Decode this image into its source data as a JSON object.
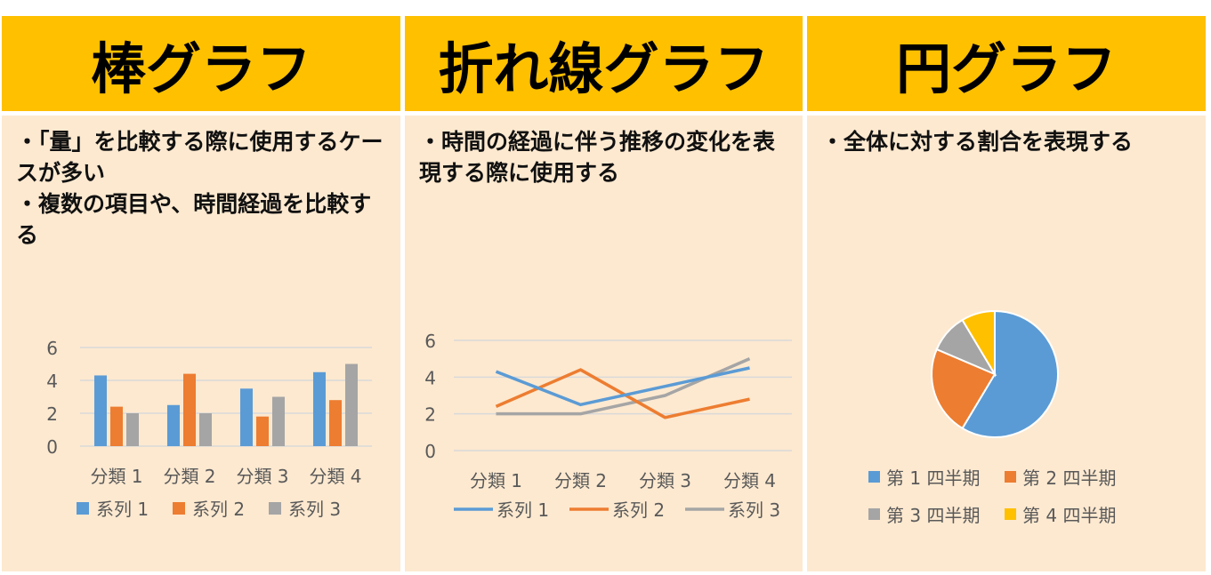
{
  "panels": [
    {
      "title": "棒グラフ",
      "bullets": [
        "・「量」を比較する際に使用するケースが多い",
        "・複数の項目や、時間経過を比較する"
      ]
    },
    {
      "title": "折れ線グラフ",
      "bullets": [
        "・時間の経過に伴う推移の変化を表現する際に使用する"
      ]
    },
    {
      "title": "円グラフ",
      "bullets": [
        "・全体に対する割合を表現する"
      ]
    }
  ],
  "colors": {
    "header": "#FFC000",
    "panel": "#FDE9D0",
    "s1": "#5B9BD5",
    "s2": "#ED7D31",
    "s3": "#A5A5A5",
    "s4": "#FFC000"
  },
  "chart_data": [
    {
      "type": "bar",
      "categories": [
        "分類 1",
        "分類 2",
        "分類 3",
        "分類 4"
      ],
      "yticks": [
        "0",
        "2",
        "4",
        "6"
      ],
      "ylim": [
        0,
        6
      ],
      "grid": true,
      "legend": "bottom",
      "series": [
        {
          "name": "系列 1",
          "values": [
            4.3,
            2.5,
            3.5,
            4.5
          ]
        },
        {
          "name": "系列 2",
          "values": [
            2.4,
            4.4,
            1.8,
            2.8
          ]
        },
        {
          "name": "系列 3",
          "values": [
            2,
            2,
            3,
            5
          ]
        }
      ]
    },
    {
      "type": "line",
      "categories": [
        "分類 1",
        "分類 2",
        "分類 3",
        "分類 4"
      ],
      "yticks": [
        "0",
        "2",
        "4",
        "6"
      ],
      "ylim": [
        0,
        6
      ],
      "grid": true,
      "legend": "bottom",
      "series": [
        {
          "name": "系列 1",
          "values": [
            4.3,
            2.5,
            3.5,
            4.5
          ]
        },
        {
          "name": "系列 2",
          "values": [
            2.4,
            4.4,
            1.8,
            2.8
          ]
        },
        {
          "name": "系列 3",
          "values": [
            2,
            2,
            3,
            5
          ]
        }
      ]
    },
    {
      "type": "pie",
      "legend": "bottom",
      "slices": [
        {
          "name": "第 1 四半期",
          "value": 8.2
        },
        {
          "name": "第 2 四半期",
          "value": 3.2
        },
        {
          "name": "第 3 四半期",
          "value": 1.4
        },
        {
          "name": "第 4 四半期",
          "value": 1.2
        }
      ]
    }
  ]
}
